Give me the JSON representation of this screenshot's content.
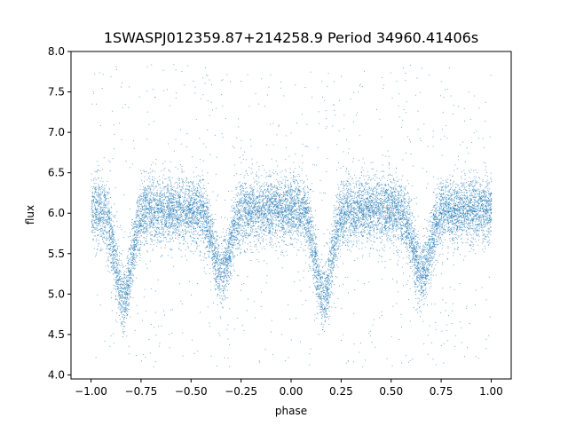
{
  "chart_data": {
    "type": "scatter",
    "title": "1SWASPJ012359.87+214258.9 Period 34960.41406s",
    "xlabel": "phase",
    "ylabel": "flux",
    "xlim": [
      -1.1,
      1.1
    ],
    "ylim": [
      3.95,
      8.0
    ],
    "xticks": [
      "−1.00",
      "−0.75",
      "−0.50",
      "−0.25",
      "0.00",
      "0.25",
      "0.50",
      "0.75",
      "1.00"
    ],
    "yticks": [
      "4.0",
      "4.5",
      "5.0",
      "5.5",
      "6.0",
      "6.5",
      "7.0",
      "7.5",
      "8.0"
    ],
    "grid": false,
    "legend": "none",
    "marker_color": "#1f77b4",
    "light_curve": {
      "baseline_flux": 6.05,
      "primary_eclipse_phases": [
        -0.84,
        0.16
      ],
      "primary_eclipse_min_flux": 4.95,
      "secondary_eclipse_phases": [
        -0.35,
        0.65
      ],
      "secondary_eclipse_min_flux": 5.25,
      "phase_range": [
        -1.0,
        1.0
      ]
    }
  }
}
